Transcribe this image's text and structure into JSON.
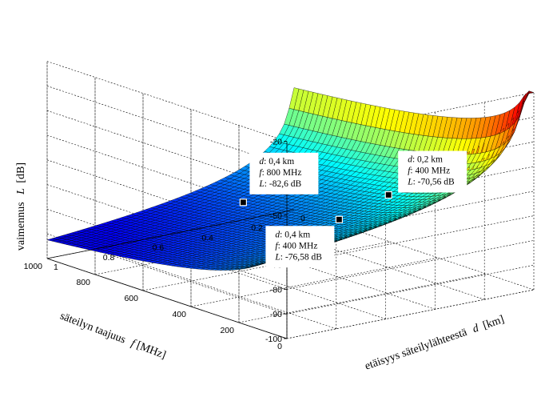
{
  "chart_data": {
    "type": "surface",
    "title": "",
    "zlabel": {
      "text": "vaimennus",
      "symbol": "L",
      "unit": "[dB]"
    },
    "xlabel": {
      "text": "säteilyn  taajuus",
      "symbol": "f",
      "unit": "[MHz]"
    },
    "ylabel": {
      "text": "etäisyys  säteilylähteestä",
      "symbol": "d",
      "unit": "[km]"
    },
    "x_axis": {
      "name": "frequency",
      "unit": "MHz",
      "range": [
        0,
        1000
      ],
      "ticks": [
        "0",
        "200",
        "400",
        "600",
        "800",
        "1000"
      ],
      "tick_values": [
        0,
        200,
        400,
        600,
        800,
        1000
      ]
    },
    "y_axis": {
      "name": "distance",
      "unit": "km",
      "range": [
        0,
        1
      ],
      "ticks": [
        "0",
        "0.2",
        "0.4",
        "0.6",
        "0.8",
        "1"
      ],
      "tick_values": [
        0,
        0.2,
        0.4,
        0.6,
        0.8,
        1
      ]
    },
    "z_axis": {
      "name": "attenuation",
      "unit": "dB",
      "range": [
        -100,
        -20
      ],
      "ticks": [
        "-20",
        "-30",
        "-40",
        "-50",
        "-60",
        "-70",
        "-80",
        "-90",
        "-100"
      ],
      "tick_values": [
        -20,
        -30,
        -40,
        -50,
        -60,
        -70,
        -80,
        -90,
        -100
      ]
    },
    "surface_model": "free-space path loss: L = -(32.44 + 20*log10(f_MHz) + 20*log10(d_km))",
    "z_clip_max": -20,
    "colormap": "jet",
    "grid": true,
    "datatips": [
      {
        "lines": [
          {
            "key": "d",
            "value": ": 0,2 km"
          },
          {
            "key": "f",
            "value": ": 400 MHz"
          },
          {
            "key": "L",
            "value": ": -70,56 dB"
          }
        ],
        "d": 0.2,
        "f": 400,
        "L": -70.56
      },
      {
        "lines": [
          {
            "key": "d",
            "value": ": 0,4 km"
          },
          {
            "key": "f",
            "value": ": 400 MHz"
          },
          {
            "key": "L",
            "value": ": -76,58 dB"
          }
        ],
        "d": 0.4,
        "f": 400,
        "L": -76.58
      },
      {
        "lines": [
          {
            "key": "d",
            "value": ": 0,4 km"
          },
          {
            "key": "f",
            "value": ": 800 MHz"
          },
          {
            "key": "L",
            "value": ": -82,6 dB"
          }
        ],
        "d": 0.4,
        "f": 800,
        "L": -82.6
      }
    ]
  }
}
